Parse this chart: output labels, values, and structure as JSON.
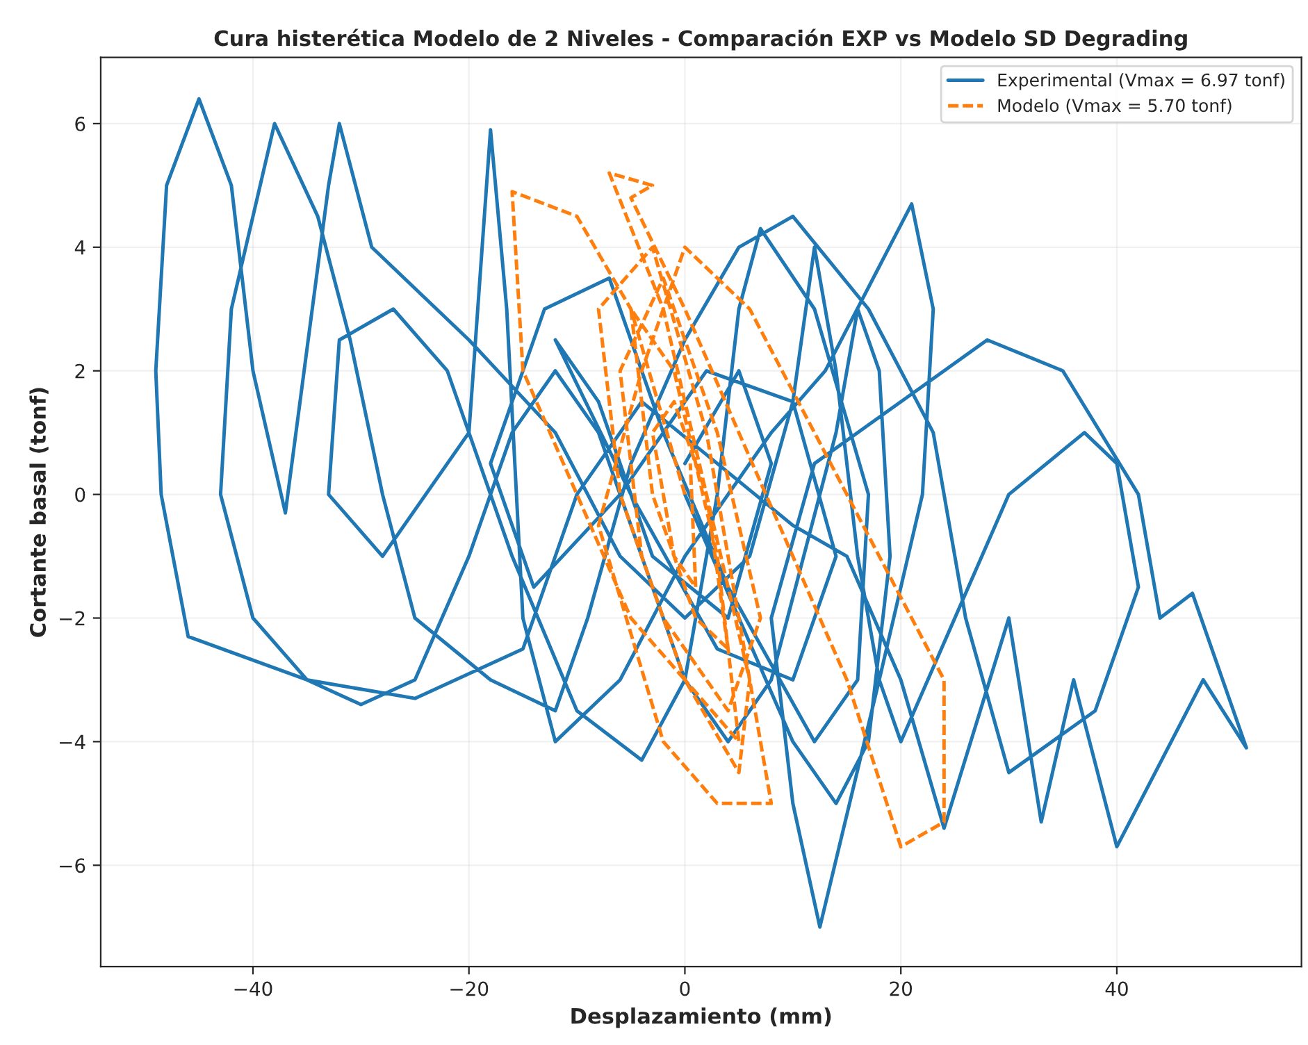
{
  "chart_data": {
    "type": "line",
    "title": "Cura histerética Modelo de 2 Niveles - Comparación EXP vs Modelo SD Degrading",
    "xlabel": "Desplazamiento (mm)",
    "ylabel": "Cortante basal (tonf)",
    "xlim": [
      -54.1,
      57.1
    ],
    "ylim": [
      -7.64,
      7.07
    ],
    "xticks": [
      {
        "value": -40,
        "label": "−40"
      },
      {
        "value": -20,
        "label": "−20"
      },
      0,
      20,
      40
    ],
    "yticks": [
      {
        "value": -6,
        "label": "−6"
      },
      {
        "value": -4,
        "label": "−4"
      },
      {
        "value": -2,
        "label": "−2"
      },
      0,
      2,
      4,
      6
    ],
    "grid": true,
    "legend": "top right",
    "series": [
      {
        "name": "Experimental (Vmax = 6.97 tonf)",
        "color": "#1f77b4",
        "line_style": "solid",
        "x": [
          0,
          5,
          8,
          4,
          -3,
          -8,
          -12,
          -5,
          3,
          10,
          14,
          10,
          2,
          -6,
          -14,
          -18,
          -13,
          -7,
          -2,
          4,
          12,
          16,
          17,
          12,
          7,
          5,
          3,
          0,
          -4,
          -10,
          -16,
          -22,
          -27,
          -32,
          -33,
          -28,
          -20,
          -18,
          -16.5,
          -15,
          -12,
          -6,
          0,
          8,
          13,
          21,
          23,
          22,
          18,
          12.5,
          10,
          8,
          12,
          20,
          28,
          35,
          42,
          44,
          47,
          52,
          48,
          40,
          36,
          33,
          30,
          24,
          20,
          15,
          10,
          3,
          -4,
          -10,
          -15,
          -25,
          -35,
          -46,
          -48.5,
          -49,
          -48,
          -45,
          -42,
          -40,
          -37,
          -33,
          -32,
          -29,
          -20,
          -12,
          -6,
          0,
          6,
          10,
          12,
          14,
          16,
          18,
          20,
          25,
          30,
          37,
          40,
          42,
          38,
          30,
          26,
          23,
          17,
          10,
          5,
          0,
          -5,
          -9,
          -12,
          -18,
          -25,
          -28,
          -31,
          -34,
          -38,
          -42,
          -43,
          -40,
          -35,
          -30,
          -25,
          -20,
          -16,
          -12,
          -8,
          -4,
          0,
          4,
          8,
          11,
          14,
          16,
          18,
          19,
          17,
          14,
          10,
          5,
          0
        ],
        "values": [
          0.5,
          2,
          0.5,
          -2,
          -1,
          1.5,
          2.5,
          0,
          -2.5,
          -3,
          -1,
          1.5,
          2,
          0,
          -1.5,
          0.5,
          3,
          3.5,
          1,
          -1.5,
          -4,
          -3,
          0,
          3,
          4.3,
          3,
          0,
          -3,
          -4.3,
          -3.5,
          -1,
          2,
          3,
          2.5,
          0,
          -1,
          1,
          5.9,
          3,
          -2,
          -4,
          -3,
          -1,
          1,
          2,
          4.7,
          3,
          0,
          -3,
          -7.0,
          -5,
          -2,
          0.5,
          1.5,
          2.5,
          2,
          0,
          -2,
          -1.6,
          -4.1,
          -3,
          -5.7,
          -3,
          -5.3,
          -2,
          -5.4,
          -3,
          -1,
          -0.5,
          0.5,
          1.5,
          0,
          -2.5,
          -3.3,
          -3.0,
          -2.3,
          0,
          2,
          5,
          6.4,
          5,
          2,
          -0.3,
          5,
          6.0,
          4,
          2.5,
          1,
          -1,
          -2,
          -1,
          1.5,
          4.0,
          2,
          -1,
          -3,
          -4,
          -2,
          0,
          1,
          0.5,
          -1.5,
          -3.5,
          -4.5,
          -2,
          1,
          3,
          4.5,
          4,
          2.5,
          0.5,
          -2,
          -3.5,
          -3,
          -2,
          0,
          2.5,
          4.5,
          6.0,
          3,
          0,
          -2,
          -3,
          -3.4,
          -3,
          -1,
          1,
          2,
          1,
          -1,
          -3,
          -4,
          -3,
          -1,
          1,
          3,
          2,
          -1,
          -4,
          -5,
          -4,
          -2,
          0
        ]
      },
      {
        "name": "Modelo (Vmax = 5.70 tonf)",
        "color": "#ff7f0e",
        "line_style": "dashed",
        "x": [
          0,
          -5,
          -10,
          -16,
          -15,
          -10,
          -5,
          0,
          5,
          6,
          2,
          -2,
          -7,
          -3,
          -5,
          0,
          5,
          10,
          15,
          20,
          24,
          24,
          18,
          12,
          6,
          0,
          -4,
          -8,
          -2,
          3,
          8,
          5,
          2,
          -3,
          -8,
          -6,
          -2,
          4,
          7,
          3,
          -2,
          -6,
          -4,
          0,
          5,
          3,
          -1,
          -5,
          -3,
          1,
          4,
          2,
          -1,
          -3,
          -1,
          1,
          0.5
        ],
        "values": [
          0,
          3,
          4.5,
          4.9,
          2,
          0,
          -2,
          -3,
          -4.5,
          -3,
          0,
          3,
          5.2,
          5,
          4.8,
          3,
          1,
          -1,
          -3,
          -5.7,
          -5.3,
          -3,
          -1,
          1,
          3,
          4,
          2,
          -0.5,
          -4,
          -5,
          -5,
          -2,
          1,
          4,
          3,
          0,
          -2,
          -3.5,
          -2,
          1,
          3.5,
          2,
          -1,
          -3,
          -4,
          -1,
          2,
          3,
          0,
          -2,
          -2.5,
          0,
          1.5,
          1,
          -1,
          -1.5,
          0.5
        ]
      }
    ]
  }
}
